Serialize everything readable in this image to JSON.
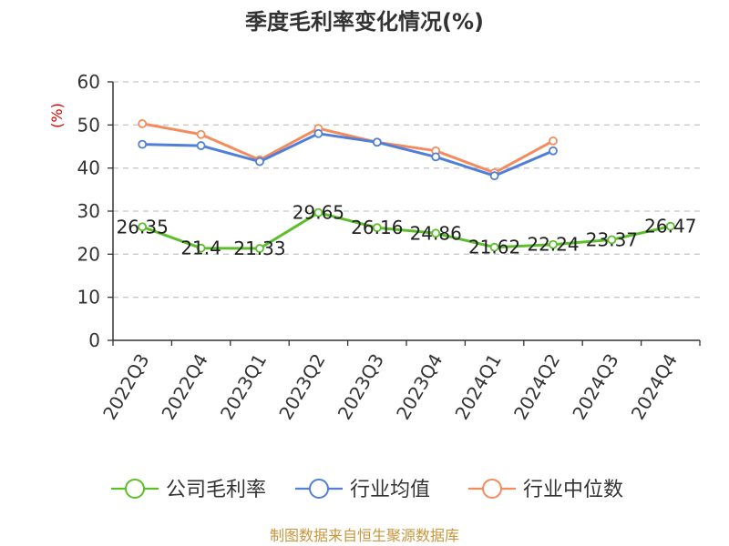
{
  "chart_data": {
    "type": "line",
    "title": "季度毛利率变化情况(%)",
    "ylabel": "(%)",
    "ylim": [
      0,
      60
    ],
    "yticks": [
      0,
      10,
      20,
      30,
      40,
      50,
      60
    ],
    "grid": true,
    "legend_position": "bottom",
    "categories": [
      "2022Q3",
      "2022Q4",
      "2023Q1",
      "2023Q2",
      "2023Q3",
      "2023Q4",
      "2024Q1",
      "2024Q2",
      "2024Q3",
      "2024Q4"
    ],
    "series": [
      {
        "name": "公司毛利率",
        "color": "#5cbf2a",
        "values": [
          26.35,
          21.4,
          21.33,
          29.65,
          26.16,
          24.86,
          21.62,
          22.24,
          23.37,
          26.47
        ],
        "labels": [
          "26.35",
          "21.4",
          "21.33",
          "29.65",
          "26.16",
          "24.86",
          "21.62",
          "22.24",
          "23.37",
          "26.47"
        ]
      },
      {
        "name": "行业均值",
        "color": "#4f7fd9",
        "values": [
          45.5,
          45.2,
          41.5,
          48.0,
          46.0,
          42.6,
          38.2,
          44.0,
          null,
          null
        ]
      },
      {
        "name": "行业中位数",
        "color": "#f58b5c",
        "values": [
          50.3,
          47.8,
          41.9,
          49.2,
          46.0,
          44.0,
          38.9,
          46.3,
          null,
          null
        ]
      }
    ],
    "source": "制图数据来自恒生聚源数据库"
  }
}
